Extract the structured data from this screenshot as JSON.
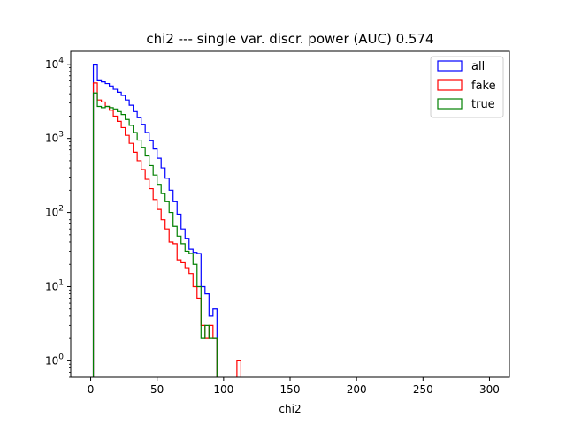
{
  "chart_data": {
    "type": "histogram",
    "title": "chi2 --- single var. discr. power (AUC) 0.574",
    "xlabel": "chi2",
    "ylabel": "",
    "yscale": "log",
    "xlim": [
      -15,
      315
    ],
    "ylim": [
      0.6,
      15000
    ],
    "xticks": [
      0,
      50,
      100,
      150,
      200,
      250,
      300
    ],
    "yticks": [
      {
        "base": "10",
        "exp": "0",
        "value": 1
      },
      {
        "base": "10",
        "exp": "1",
        "value": 10
      },
      {
        "base": "10",
        "exp": "2",
        "value": 100
      },
      {
        "base": "10",
        "exp": "3",
        "value": 1000
      },
      {
        "base": "10",
        "exp": "4",
        "value": 10000
      }
    ],
    "bin_start": 2,
    "bin_width": 3,
    "legend": {
      "position": "top-right"
    },
    "series": [
      {
        "name": "all",
        "color": "#0000ff",
        "counts": [
          9800,
          6000,
          5800,
          5500,
          5100,
          4600,
          4200,
          3800,
          3300,
          2800,
          2300,
          1900,
          1550,
          1200,
          930,
          720,
          540,
          400,
          290,
          200,
          140,
          95,
          60,
          45,
          32,
          29,
          28,
          10,
          8,
          4,
          5,
          0,
          0,
          0,
          0,
          0,
          0,
          0
        ]
      },
      {
        "name": "fake",
        "color": "#ff0000",
        "counts": [
          5600,
          3300,
          3100,
          2700,
          2400,
          2000,
          1700,
          1400,
          1100,
          860,
          650,
          500,
          380,
          280,
          210,
          150,
          110,
          80,
          60,
          40,
          38,
          23,
          21,
          18,
          15,
          10,
          7,
          3,
          2,
          3,
          2,
          0,
          0,
          0,
          0,
          0,
          1,
          0
        ]
      },
      {
        "name": "true",
        "color": "#008000",
        "counts": [
          4100,
          2700,
          2600,
          2700,
          2600,
          2500,
          2300,
          2100,
          1800,
          1500,
          1200,
          950,
          760,
          580,
          430,
          320,
          240,
          180,
          140,
          100,
          65,
          48,
          38,
          30,
          28,
          20,
          10,
          2,
          3,
          2,
          2,
          0,
          0,
          0,
          0,
          0,
          0,
          0
        ]
      }
    ]
  }
}
